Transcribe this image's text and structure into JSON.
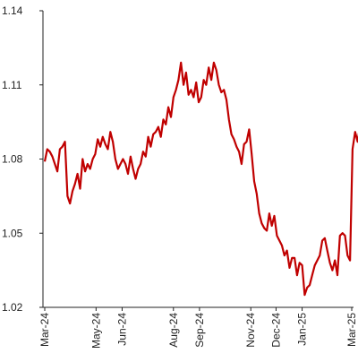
{
  "chart_data": {
    "type": "line",
    "title": "",
    "xlabel": "",
    "ylabel": "",
    "ylim": [
      1.02,
      1.14
    ],
    "y_ticks": [
      "1.02",
      "1.05",
      "1.08",
      "1.11",
      "1.14"
    ],
    "y_tick_values": [
      1.02,
      1.05,
      1.08,
      1.11,
      1.14
    ],
    "x_ticks": [
      {
        "label": "Mar-24",
        "date": "2024-03-01"
      },
      {
        "label": "May-24",
        "date": "2024-05-01"
      },
      {
        "label": "Jun-24",
        "date": "2024-06-01"
      },
      {
        "label": "Aug-24",
        "date": "2024-08-01"
      },
      {
        "label": "Sep-24",
        "date": "2024-09-01"
      },
      {
        "label": "Nov-24",
        "date": "2024-11-01"
      },
      {
        "label": "Dec-24",
        "date": "2024-12-01"
      },
      {
        "label": "Jan-25",
        "date": "2025-01-01"
      },
      {
        "label": "Mar-25",
        "date": "2025-03-01"
      }
    ],
    "grid": false,
    "legend": "none",
    "series": [
      {
        "color": "#c00000",
        "x": [
          "2024-03-01",
          "2024-03-04",
          "2024-03-07",
          "2024-03-10",
          "2024-03-13",
          "2024-03-16",
          "2024-03-19",
          "2024-03-22",
          "2024-03-25",
          "2024-03-28",
          "2024-03-31",
          "2024-04-03",
          "2024-04-06",
          "2024-04-09",
          "2024-04-12",
          "2024-04-15",
          "2024-04-18",
          "2024-04-21",
          "2024-04-24",
          "2024-04-27",
          "2024-04-30",
          "2024-05-03",
          "2024-05-06",
          "2024-05-09",
          "2024-05-12",
          "2024-05-15",
          "2024-05-18",
          "2024-05-21",
          "2024-05-24",
          "2024-05-27",
          "2024-05-30",
          "2024-06-02",
          "2024-06-05",
          "2024-06-08",
          "2024-06-11",
          "2024-06-14",
          "2024-06-17",
          "2024-06-20",
          "2024-06-23",
          "2024-06-26",
          "2024-06-29",
          "2024-07-02",
          "2024-07-05",
          "2024-07-08",
          "2024-07-11",
          "2024-07-14",
          "2024-07-17",
          "2024-07-20",
          "2024-07-23",
          "2024-07-26",
          "2024-07-29",
          "2024-08-01",
          "2024-08-04",
          "2024-08-07",
          "2024-08-10",
          "2024-08-13",
          "2024-08-16",
          "2024-08-19",
          "2024-08-22",
          "2024-08-25",
          "2024-08-28",
          "2024-08-31",
          "2024-09-03",
          "2024-09-06",
          "2024-09-09",
          "2024-09-12",
          "2024-09-15",
          "2024-09-18",
          "2024-09-21",
          "2024-09-24",
          "2024-09-27",
          "2024-09-30",
          "2024-10-03",
          "2024-10-06",
          "2024-10-09",
          "2024-10-12",
          "2024-10-15",
          "2024-10-18",
          "2024-10-21",
          "2024-10-24",
          "2024-10-27",
          "2024-10-30",
          "2024-11-02",
          "2024-11-05",
          "2024-11-08",
          "2024-11-11",
          "2024-11-14",
          "2024-11-17",
          "2024-11-20",
          "2024-11-23",
          "2024-11-26",
          "2024-11-29",
          "2024-12-02",
          "2024-12-05",
          "2024-12-08",
          "2024-12-11",
          "2024-12-14",
          "2024-12-17",
          "2024-12-20",
          "2024-12-23",
          "2024-12-26",
          "2024-12-29",
          "2025-01-01",
          "2025-01-04",
          "2025-01-07",
          "2025-01-10",
          "2025-01-13",
          "2025-01-16",
          "2025-01-19",
          "2025-01-22",
          "2025-01-25",
          "2025-01-28",
          "2025-01-31",
          "2025-02-03",
          "2025-02-06",
          "2025-02-09",
          "2025-02-12",
          "2025-02-15",
          "2025-02-18",
          "2025-02-21",
          "2025-02-24",
          "2025-02-27",
          "2025-03-02",
          "2025-03-05",
          "2025-03-08",
          "2025-03-11",
          "2025-03-14"
        ],
        "y": [
          1.079,
          1.084,
          1.083,
          1.081,
          1.078,
          1.075,
          1.084,
          1.085,
          1.087,
          1.065,
          1.062,
          1.067,
          1.07,
          1.074,
          1.068,
          1.08,
          1.075,
          1.078,
          1.076,
          1.08,
          1.082,
          1.088,
          1.085,
          1.089,
          1.086,
          1.084,
          1.091,
          1.087,
          1.08,
          1.076,
          1.078,
          1.08,
          1.078,
          1.074,
          1.081,
          1.076,
          1.072,
          1.076,
          1.078,
          1.083,
          1.081,
          1.089,
          1.085,
          1.09,
          1.091,
          1.093,
          1.089,
          1.096,
          1.094,
          1.101,
          1.097,
          1.105,
          1.108,
          1.112,
          1.119,
          1.11,
          1.115,
          1.106,
          1.108,
          1.105,
          1.111,
          1.103,
          1.105,
          1.112,
          1.11,
          1.117,
          1.112,
          1.119,
          1.116,
          1.11,
          1.107,
          1.108,
          1.104,
          1.096,
          1.09,
          1.088,
          1.085,
          1.083,
          1.078,
          1.086,
          1.087,
          1.092,
          1.082,
          1.071,
          1.066,
          1.058,
          1.054,
          1.052,
          1.051,
          1.058,
          1.053,
          1.057,
          1.049,
          1.047,
          1.045,
          1.041,
          1.043,
          1.036,
          1.04,
          1.04,
          1.033,
          1.038,
          1.037,
          1.025,
          1.028,
          1.029,
          1.033,
          1.037,
          1.039,
          1.041,
          1.047,
          1.048,
          1.043,
          1.038,
          1.035,
          1.039,
          1.033,
          1.049,
          1.05,
          1.049,
          1.041,
          1.039,
          1.084,
          1.091,
          1.087,
          1.094,
          1.083
        ]
      }
    ]
  }
}
